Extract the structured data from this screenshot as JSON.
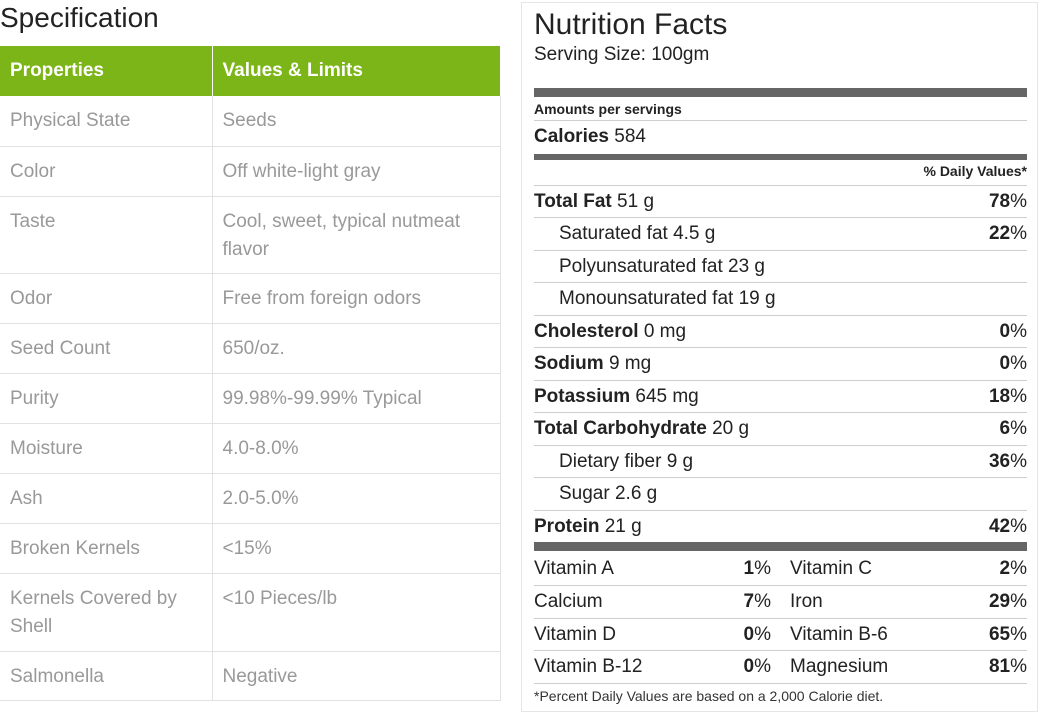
{
  "spec": {
    "title": "Specification",
    "headers": [
      "Properties",
      "Values & Limits"
    ],
    "rows": [
      {
        "property": "Physical State",
        "value": "Seeds"
      },
      {
        "property": "Color",
        "value": "Off white-light gray"
      },
      {
        "property": "Taste",
        "value": "Cool, sweet, typical nutmeat flavor"
      },
      {
        "property": "Odor",
        "value": "Free from foreign odors"
      },
      {
        "property": "Seed Count",
        "value": "650/oz."
      },
      {
        "property": "Purity",
        "value": "99.98%-99.99% Typical"
      },
      {
        "property": "Moisture",
        "value": "4.0-8.0%"
      },
      {
        "property": "Ash",
        "value": "2.0-5.0%"
      },
      {
        "property": "Broken Kernels",
        "value": "<15%"
      },
      {
        "property": "Kernels Covered by Shell",
        "value": "<10 Pieces/lb"
      },
      {
        "property": "Salmonella",
        "value": "Negative"
      }
    ],
    "header_color": "#7cb518"
  },
  "nutrition": {
    "title": "Nutrition Facts",
    "serving": "Serving Size: 100gm",
    "amounts_label": "Amounts per servings",
    "calories_label": "Calories",
    "calories_value": "584",
    "daily_values_header": "% Daily Values*",
    "nutrients": [
      {
        "name": "Total Fat",
        "amount": "51 g",
        "pct": "78",
        "bold": true
      },
      {
        "name": "Saturated fat",
        "amount": "4.5 g",
        "pct": "22",
        "bold": false
      },
      {
        "name": "Polyunsaturated fat",
        "amount": "23 g",
        "pct": "",
        "bold": false
      },
      {
        "name": "Monounsaturated fat",
        "amount": "19 g",
        "pct": "",
        "bold": false
      },
      {
        "name": "Cholesterol",
        "amount": "0 mg",
        "pct": "0",
        "bold": true
      },
      {
        "name": "Sodium",
        "amount": "9 mg",
        "pct": "0",
        "bold": true
      },
      {
        "name": "Potassium",
        "amount": "645 mg",
        "pct": "18",
        "bold": true
      },
      {
        "name": "Total Carbohydrate",
        "amount": "20 g",
        "pct": "6",
        "bold": true
      },
      {
        "name": "Dietary fiber",
        "amount": "9 g",
        "pct": "36",
        "bold": false
      },
      {
        "name": "Sugar",
        "amount": "2.6 g",
        "pct": "",
        "bold": false
      },
      {
        "name": "Protein",
        "amount": "21 g",
        "pct": "42",
        "bold": true
      }
    ],
    "vitamins": [
      {
        "left_name": "Vitamin A",
        "left_pct": "1",
        "right_name": "Vitamin C",
        "right_pct": "2"
      },
      {
        "left_name": "Calcium",
        "left_pct": "7",
        "right_name": "Iron",
        "right_pct": "29"
      },
      {
        "left_name": "Vitamin D",
        "left_pct": "0",
        "right_name": "Vitamin B-6",
        "right_pct": "65"
      },
      {
        "left_name": "Vitamin B-12",
        "left_pct": "0",
        "right_name": "Magnesium",
        "right_pct": "81"
      }
    ],
    "footnote": "*Percent Daily Values are based on a 2,000 Calorie diet."
  }
}
